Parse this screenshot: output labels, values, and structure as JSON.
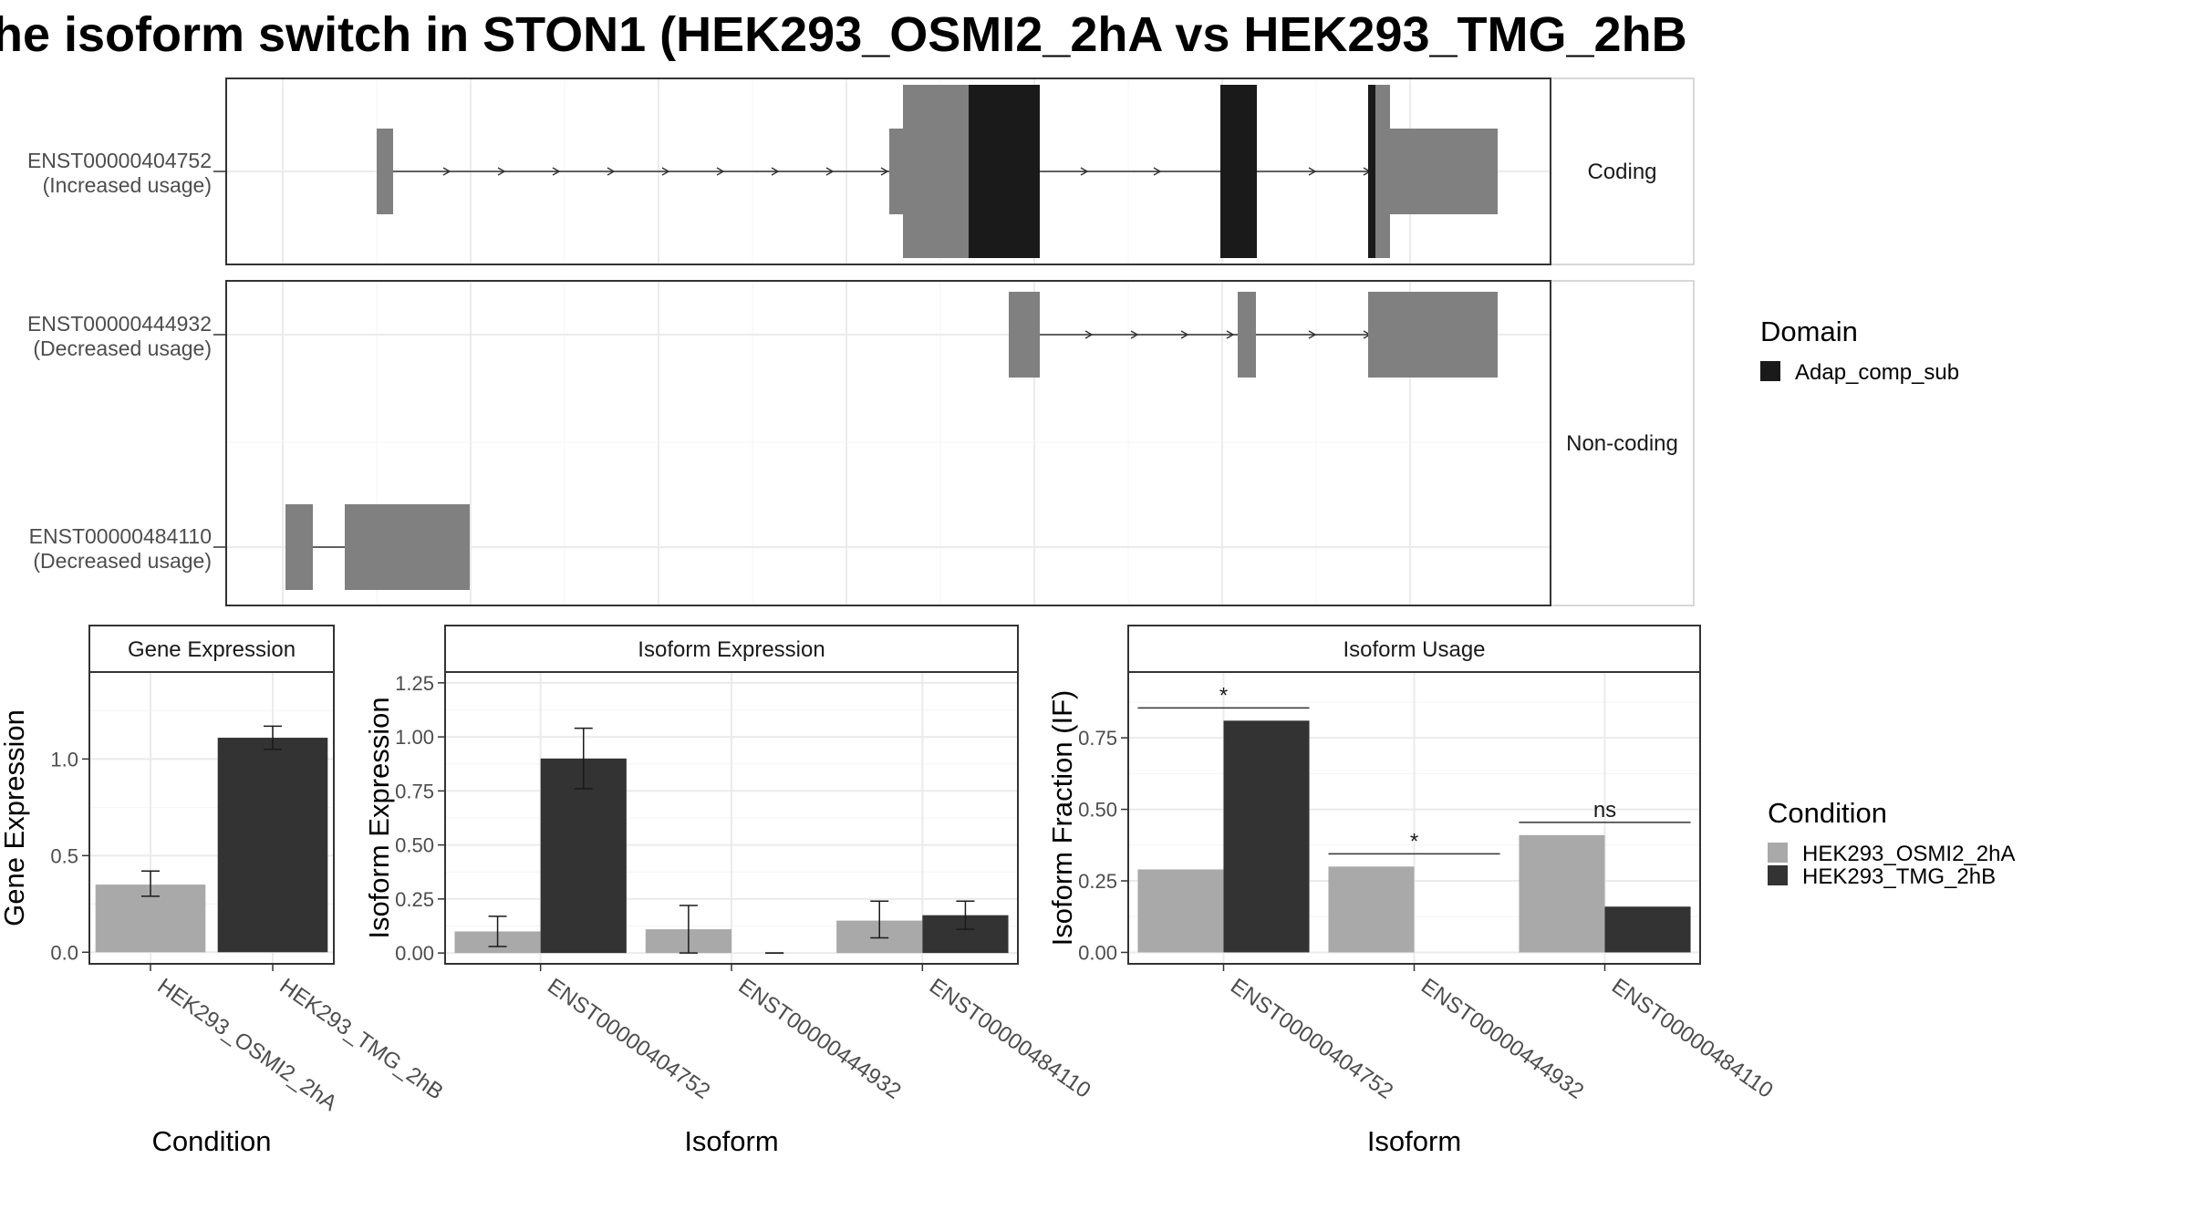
{
  "title": "he isoform switch in STON1 (HEK293_OSMI2_2hA vs HEK293_TMG_2hB",
  "colors": {
    "cond_a": "#a9a9a9",
    "cond_b": "#333333",
    "exon": "#808080",
    "domain": "#1a1a1a",
    "grid": "#ebebeb",
    "strip": "#ffffff"
  },
  "structure": {
    "groups": [
      {
        "label": "Coding"
      },
      {
        "label": "Non-coding"
      }
    ],
    "transcripts": [
      {
        "id": "ENST00000404752",
        "usage": "(Increased usage)",
        "group": 0
      },
      {
        "id": "ENST00000444932",
        "usage": "(Decreased usage)",
        "group": 1
      },
      {
        "id": "ENST00000484110",
        "usage": "(Decreased usage)",
        "group": 1
      }
    ]
  },
  "legend_domain": {
    "title": "Domain",
    "items": [
      {
        "label": "Adap_comp_sub",
        "color": "#1a1a1a"
      }
    ]
  },
  "legend_condition": {
    "title": "Condition",
    "items": [
      {
        "label": "HEK293_OSMI2_2hA",
        "color": "#a9a9a9"
      },
      {
        "label": "HEK293_TMG_2hB",
        "color": "#333333"
      }
    ]
  },
  "chart_data": [
    {
      "type": "bar",
      "panel": "Gene Expression",
      "xlabel": "Condition",
      "ylabel": "Gene Expression",
      "categories": [
        "HEK293_OSMI2_2hA",
        "HEK293_TMG_2hB"
      ],
      "values": [
        0.35,
        1.11
      ],
      "error_low": [
        0.29,
        1.05
      ],
      "error_high": [
        0.42,
        1.17
      ],
      "yticks": [
        0.0,
        0.5,
        1.0
      ],
      "ytick_labels": [
        "0.0",
        "0.5",
        "1.0"
      ],
      "ylim": [
        -0.06,
        1.45
      ]
    },
    {
      "type": "bar",
      "panel": "Isoform Expression",
      "xlabel": "Isoform",
      "ylabel": "Isoform Expression",
      "categories": [
        "ENST00000404752",
        "ENST00000444932",
        "ENST00000484110"
      ],
      "series": [
        {
          "name": "HEK293_OSMI2_2hA",
          "values": [
            0.1,
            0.11,
            0.15
          ],
          "error_low": [
            0.03,
            0.0,
            0.07
          ],
          "error_high": [
            0.17,
            0.22,
            0.24
          ]
        },
        {
          "name": "HEK293_TMG_2hB",
          "values": [
            0.9,
            0.0,
            0.175
          ],
          "error_low": [
            0.76,
            0.0,
            0.11
          ],
          "error_high": [
            1.04,
            0.0,
            0.24
          ]
        }
      ],
      "yticks": [
        0.0,
        0.25,
        0.5,
        0.75,
        1.0,
        1.25
      ],
      "ytick_labels": [
        "0.00",
        "0.25",
        "0.50",
        "0.75",
        "1.00",
        "1.25"
      ],
      "ylim": [
        -0.05,
        1.3
      ]
    },
    {
      "type": "bar",
      "panel": "Isoform Usage",
      "xlabel": "Isoform",
      "ylabel": "Isoform Fraction (IF)",
      "categories": [
        "ENST00000404752",
        "ENST00000444932",
        "ENST00000484110"
      ],
      "series": [
        {
          "name": "HEK293_OSMI2_2hA",
          "values": [
            0.29,
            0.3,
            0.41
          ]
        },
        {
          "name": "HEK293_TMG_2hB",
          "values": [
            0.81,
            0.0,
            0.16
          ]
        }
      ],
      "significance": [
        "*",
        "*",
        "ns"
      ],
      "yticks": [
        0.0,
        0.25,
        0.5,
        0.75
      ],
      "ytick_labels": [
        "0.00",
        "0.25",
        "0.50",
        "0.75"
      ],
      "ylim": [
        -0.04,
        0.98
      ]
    }
  ]
}
